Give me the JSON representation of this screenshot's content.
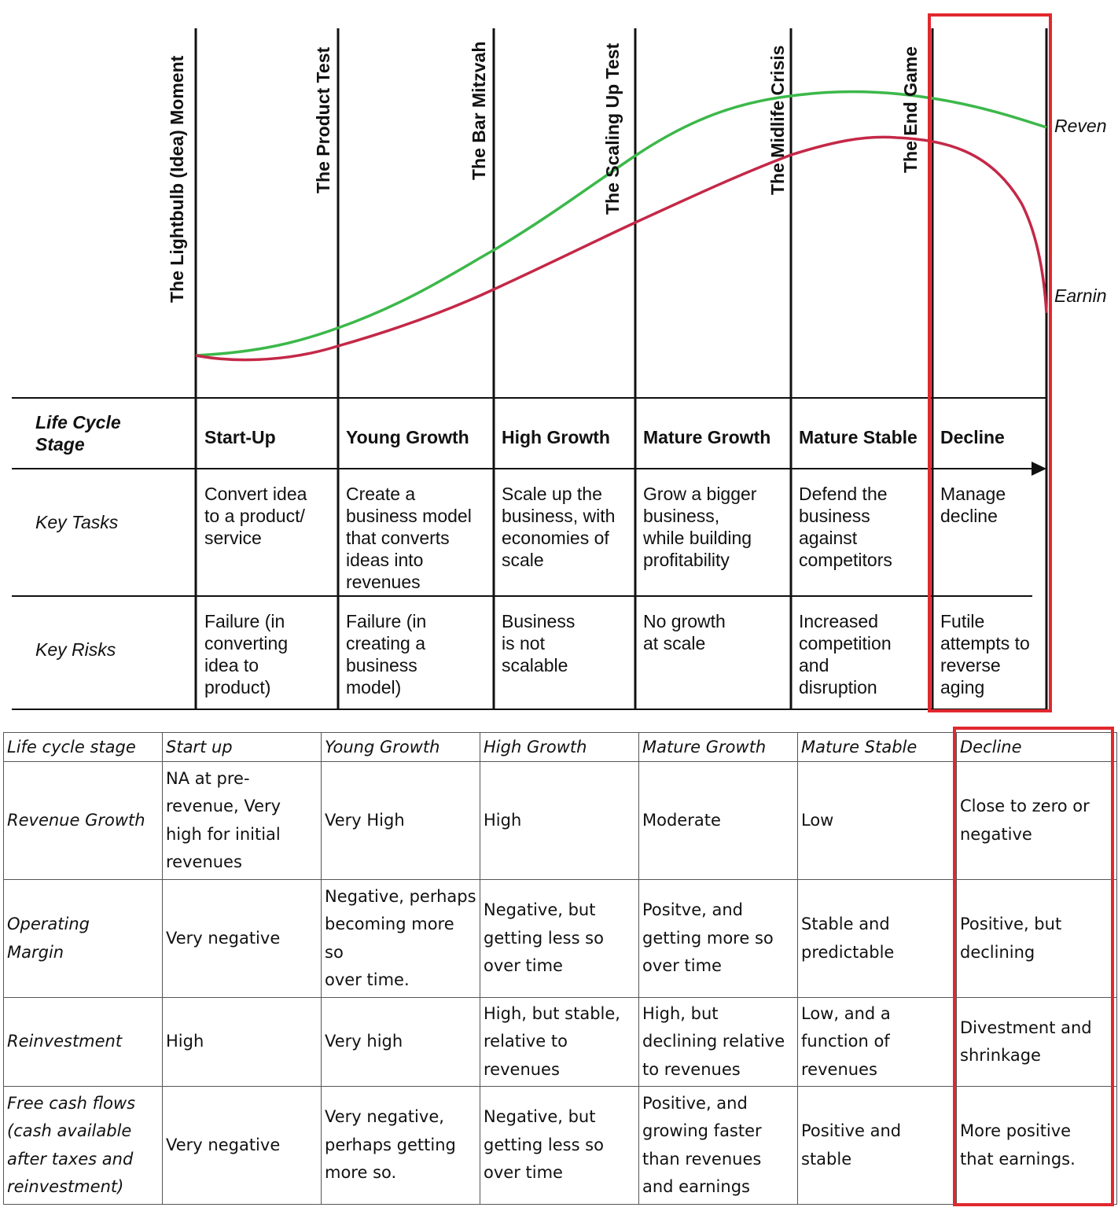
{
  "milestones": [
    "The Lightbulb (Idea) Moment",
    "The Product Test",
    "The Bar Mitzvah",
    "The Scaling Up Test",
    "The Midlife Crisis",
    "The End Game"
  ],
  "curves": {
    "revenue_label": "Reven",
    "earnings_label": "Earnin",
    "revenue_color": "#3cb84a",
    "earnings_color": "#c42847"
  },
  "stage_table": {
    "row_labels": [
      "Life Cycle\nStage",
      "Key Tasks",
      "Key Risks"
    ],
    "stages": [
      "Start-Up",
      "Young Growth",
      "High Growth",
      "Mature Growth",
      "Mature Stable",
      "Decline"
    ],
    "key_tasks": [
      "Convert idea\nto a product/\nservice",
      "Create a\nbusiness model\nthat converts\nideas into\nrevenues",
      "Scale up the\nbusiness, with\neconomies of\nscale",
      "Grow a bigger\nbusiness,\nwhile building\nprofitability",
      "Defend the\nbusiness\nagainst\ncompetitors",
      "Manage\ndecline"
    ],
    "key_risks": [
      "Failure (in\nconverting\nidea to\nproduct)",
      "Failure (in\ncreating a\nbusiness\nmodel)",
      "Business\nis not\nscalable",
      "No growth\nat scale",
      "Increased\ncompetition\nand\ndisruption",
      "Futile\nattempts to\nreverse\naging"
    ]
  },
  "metrics_table": {
    "header": [
      "Life cycle stage",
      "Start up",
      "Young Growth",
      "High Growth",
      "Mature Growth",
      "Mature Stable",
      "Decline"
    ],
    "rows": [
      [
        "Revenue Growth",
        "NA at pre-\nrevenue, Very\nhigh for initial\nrevenues",
        "Very High",
        "High",
        "Moderate",
        "Low",
        "Close to zero or\nnegative"
      ],
      [
        "Operating\nMargin",
        "Very negative",
        "Negative, perhaps\nbecoming more so\nover time.",
        "Negative, but\ngetting less so\nover time",
        "Positve, and\ngetting more so\nover time",
        "Stable and\npredictable",
        "Positive, but\ndeclining"
      ],
      [
        "Reinvestment",
        "High",
        "Very high",
        "High, but stable,\nrelative to\nrevenues",
        "High, but\ndeclining relative\nto revenues",
        "Low, and a\nfunction of\nrevenues",
        "Divestment and\nshrinkage"
      ],
      [
        "Free cash flows\n(cash available\nafter taxes and\nreinvestment)",
        "Very negative",
        "Very negative,\nperhaps getting\nmore so.",
        "Negative, but\ngetting less so\nover time",
        "Positive, and\ngrowing faster\nthan revenues\nand earnings",
        "Positive and\nstable",
        "More positive\nthat earnings."
      ]
    ]
  },
  "highlight_color": "#e1282f"
}
